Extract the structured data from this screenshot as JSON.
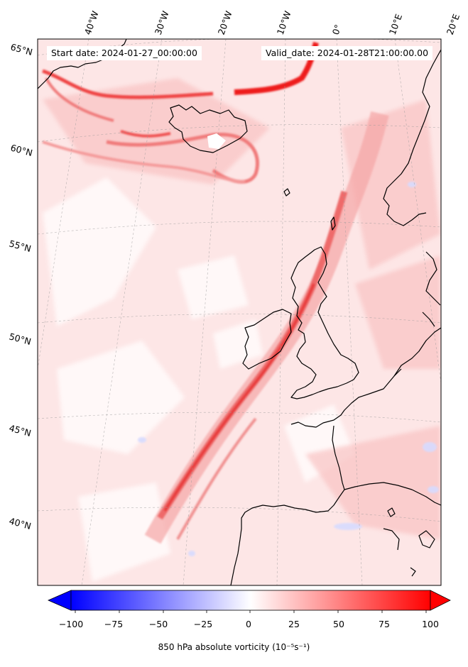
{
  "map": {
    "start_date_text": "Start date: 2024-01-27_00:00:00",
    "valid_date_text": "Valid_date: 2024-01-28T21:00:00.00",
    "lon_labels": [
      "40°W",
      "30°W",
      "20°W",
      "10°W",
      "0°",
      "10°E",
      "20°E"
    ],
    "lat_labels": [
      "65°N",
      "60°N",
      "55°N",
      "50°N",
      "45°N",
      "40°N"
    ],
    "gridlines": true,
    "field": "850 hPa absolute vorticity",
    "features": {
      "front_band": "SW-NE strong positive vorticity band from Iberian Atlantic to Norwegian Sea",
      "iceland_low_swirl": "curved high-vorticity bands south/west of Iceland"
    }
  },
  "colorbar": {
    "label": "850 hPa absolute vorticity (10⁻⁵s⁻¹)",
    "ticks": [
      "−100",
      "−75",
      "−50",
      "−25",
      "0",
      "25",
      "50",
      "75",
      "100"
    ],
    "min": -100,
    "max": 100,
    "extend": "both",
    "cmap": "bwr",
    "colors": {
      "low": "#0000ff",
      "mid": "#ffffff",
      "high": "#ff0000"
    }
  }
}
